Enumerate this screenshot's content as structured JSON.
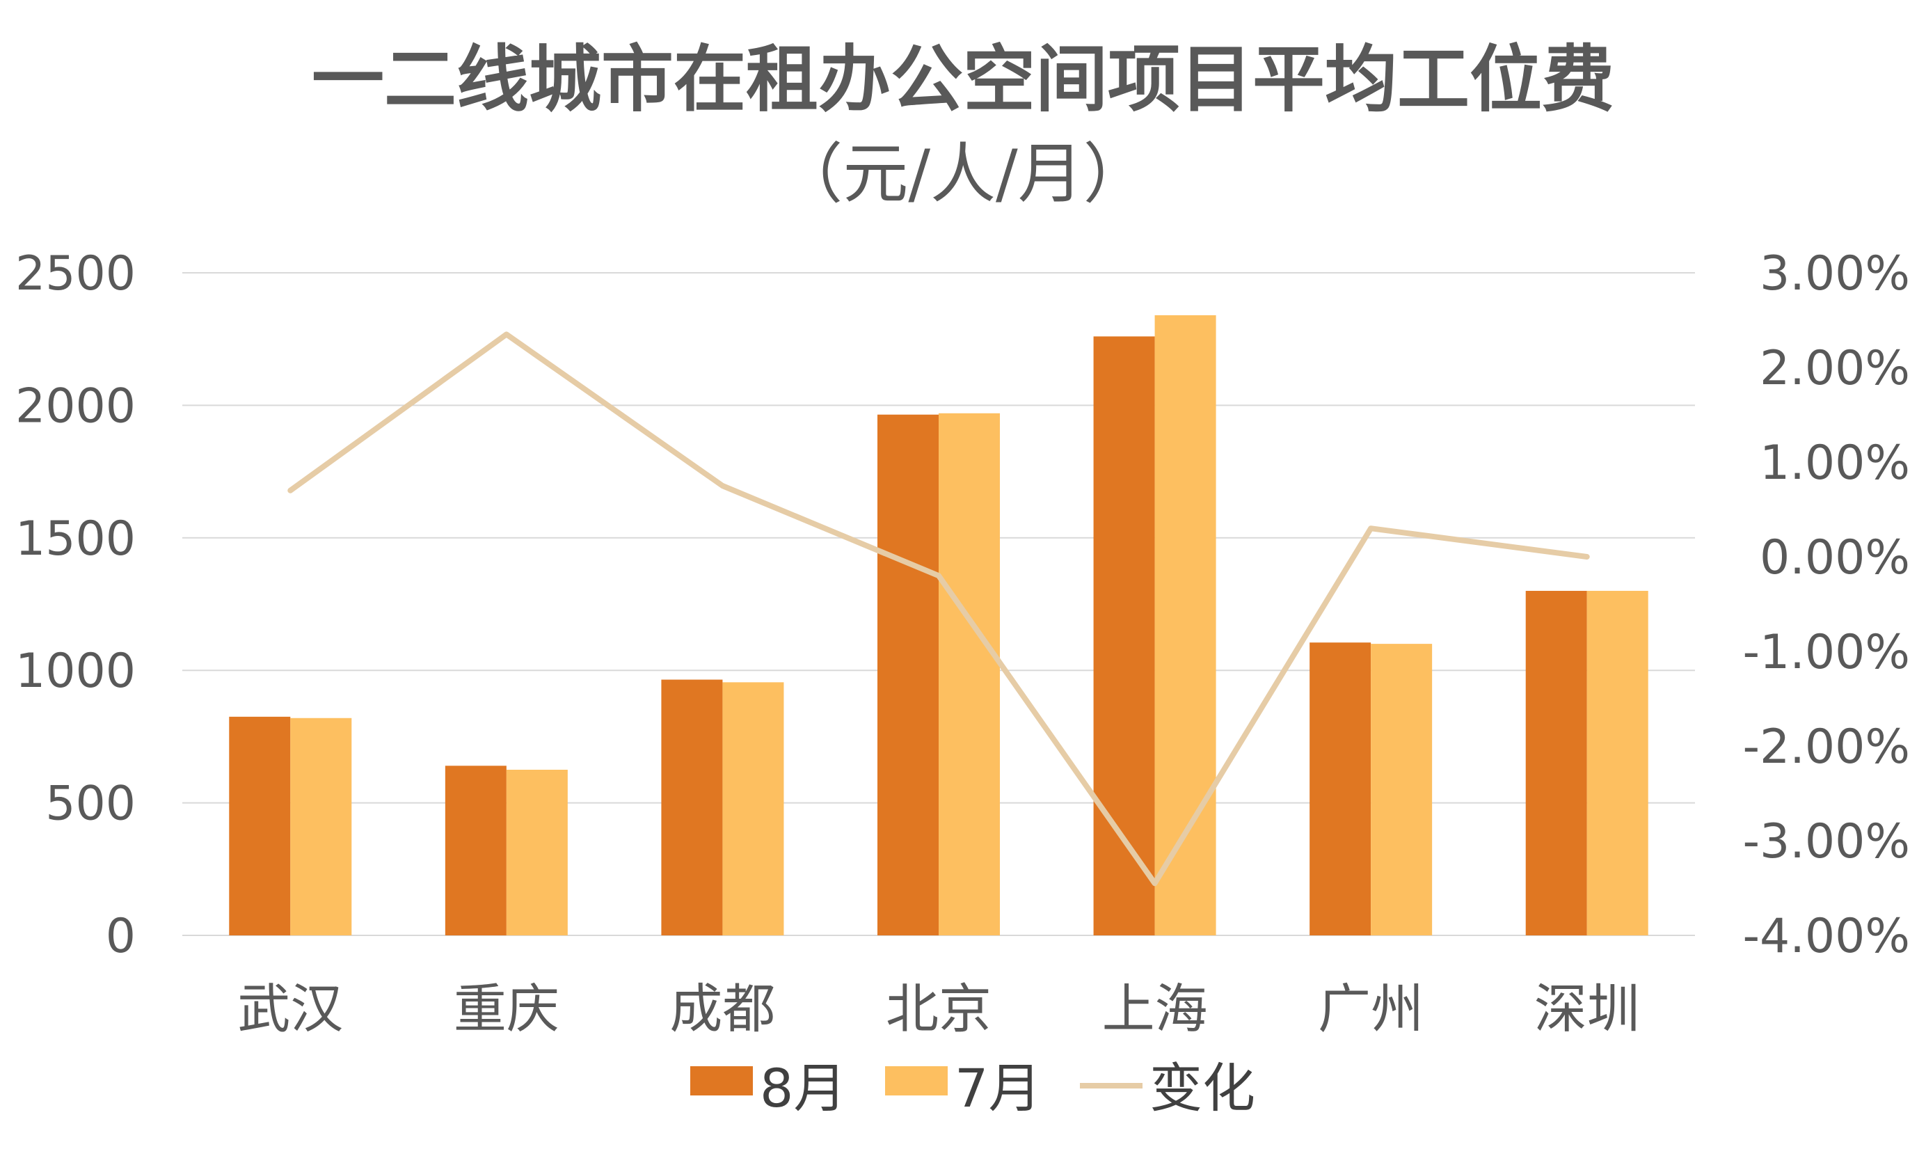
{
  "chart_data": {
    "type": "bar",
    "title": "一二线城市在租办公空间项目平均工位费",
    "subtitle": "（元/人/月）",
    "categories": [
      "武汉",
      "重庆",
      "成都",
      "北京",
      "上海",
      "广州",
      "深圳"
    ],
    "series": [
      {
        "name": "8月",
        "type": "bar",
        "axis": "left",
        "color": "#E07722",
        "values": [
          825,
          640,
          965,
          1965,
          2260,
          1105,
          1300
        ]
      },
      {
        "name": "7月",
        "type": "bar",
        "axis": "left",
        "color": "#FDBF60",
        "values": [
          820,
          625,
          955,
          1970,
          2340,
          1100,
          1300
        ]
      },
      {
        "name": "变化",
        "type": "line",
        "axis": "right",
        "color": "#E6CCA6",
        "values": [
          0.7,
          2.35,
          0.75,
          -0.2,
          -3.45,
          0.3,
          0.0
        ]
      }
    ],
    "y_left": {
      "min": 0,
      "max": 2500,
      "ticks": [
        0,
        500,
        1000,
        1500,
        2000,
        2500
      ],
      "tick_labels": [
        "0",
        "500",
        "1000",
        "1500",
        "2000",
        "2500"
      ]
    },
    "y_right": {
      "min": -4,
      "max": 3,
      "unit": "%",
      "ticks": [
        -4,
        -3,
        -2,
        -1,
        0,
        1,
        2,
        3
      ],
      "tick_labels": [
        "-4.00%",
        "-3.00%",
        "-2.00%",
        "-1.00%",
        "0.00%",
        "1.00%",
        "2.00%",
        "3.00%"
      ]
    },
    "grid": true,
    "legend_position": "bottom",
    "gridline_color": "#D9D9D9",
    "text_color": "#595959"
  }
}
